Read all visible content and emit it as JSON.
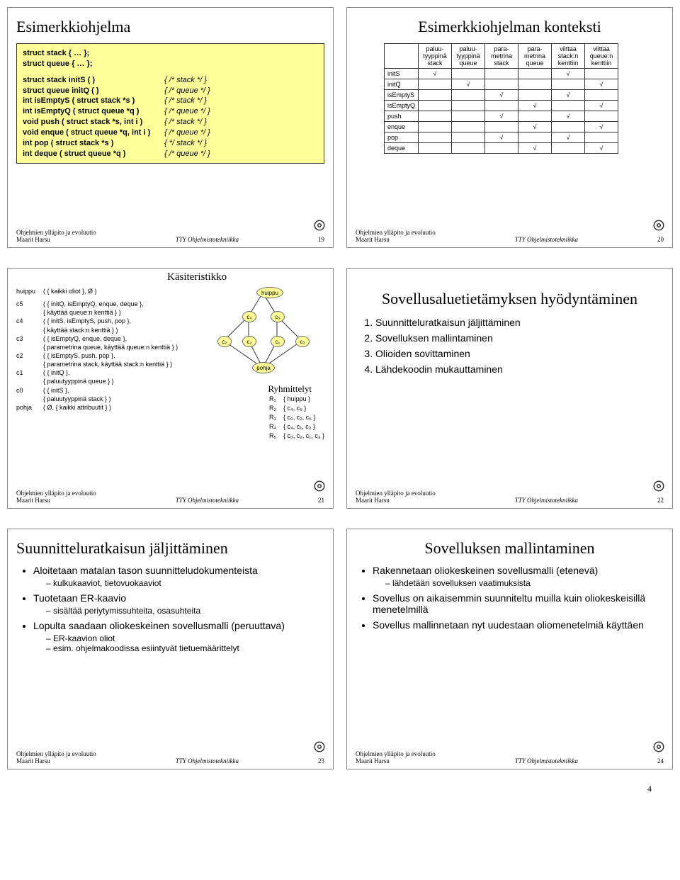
{
  "footer_left_line1": "Ohjelmien ylläpito ja evoluutio",
  "footer_left_line2": "Maarit Harsu",
  "footer_mid": "TTY Ohjelmistotekniikka",
  "page_number": "4",
  "s19": {
    "title": "Esimerkkiohjelma",
    "num": "19",
    "lines": [
      {
        "l": "struct stack { … };",
        "r": "",
        "bold": true
      },
      {
        "l": "struct queue { … };",
        "r": "",
        "bold": true,
        "gap": true
      },
      {
        "l": "struct stack initS ( )",
        "r": "{ /* stack */ }",
        "bold": true
      },
      {
        "l": "struct queue initQ ( )",
        "r": "{ /* queue */ }",
        "bold": true
      },
      {
        "l": "int isEmptyS ( struct stack *s )",
        "r": "{ /* stack */ }",
        "bold": true
      },
      {
        "l": "int isEmptyQ ( struct queue *q )",
        "r": "{ /* queue */ }",
        "bold": true
      },
      {
        "l": "void push ( struct stack *s, int i )",
        "r": "{ /* stack */ }",
        "bold": true
      },
      {
        "l": "void enque ( struct queue *q, int i )",
        "r": "{ /* queue */ }",
        "bold": true
      },
      {
        "l": "int pop ( struct stack *s )",
        "r": "{ */ stack */ }",
        "bold": true
      },
      {
        "l": "int deque ( struct queue *q )",
        "r": "{ /* queue */ }",
        "bold": true
      }
    ]
  },
  "s20": {
    "title": "Esimerkkiohjelman konteksti",
    "num": "20",
    "cols": [
      "paluu-\ntyyppinä\nstack",
      "paluu-\ntyyppinä\nqueue",
      "para-\nmetrina\nstack",
      "para-\nmetrina\nqueue",
      "viittaa\nstack:n\nkenttiin",
      "viittaa\nqueue:n\nkenttiin"
    ],
    "rows": [
      {
        "name": "initS",
        "marks": [
          1,
          0,
          0,
          0,
          1,
          0
        ]
      },
      {
        "name": "initQ",
        "marks": [
          0,
          1,
          0,
          0,
          0,
          1
        ]
      },
      {
        "name": "isEmptyS",
        "marks": [
          0,
          0,
          1,
          0,
          1,
          0
        ]
      },
      {
        "name": "isEmptyQ",
        "marks": [
          0,
          0,
          0,
          1,
          0,
          1
        ]
      },
      {
        "name": "push",
        "marks": [
          0,
          0,
          1,
          0,
          1,
          0
        ]
      },
      {
        "name": "enque",
        "marks": [
          0,
          0,
          0,
          1,
          0,
          1
        ]
      },
      {
        "name": "pop",
        "marks": [
          0,
          0,
          1,
          0,
          1,
          0
        ]
      },
      {
        "name": "deque",
        "marks": [
          0,
          0,
          0,
          1,
          0,
          1
        ]
      }
    ],
    "check": "√"
  },
  "s21": {
    "title": "Käsiteristikko",
    "num": "21",
    "entries": [
      {
        "k": "huippu",
        "v": "( { kaikki oliot }, Ø )",
        "gap": true
      },
      {
        "k": "c5",
        "v": "( { initQ, isEmptyQ, enque, deque },"
      },
      {
        "k": "",
        "v": "  { käyttää queue:n kenttiä } )"
      },
      {
        "k": "c4",
        "v": "( { initS, isEmptyS, push, pop },"
      },
      {
        "k": "",
        "v": "  { käyttää stack:n kenttiä } )"
      },
      {
        "k": "c3",
        "v": "( { isEmptyQ, enque, deque },"
      },
      {
        "k": "",
        "v": "  { parametrina queue, käyttää queue:n kenttiä } )"
      },
      {
        "k": "c2",
        "v": "( { isEmptyS, push, pop },"
      },
      {
        "k": "",
        "v": "  { parametrina stack, käyttää stack:n kenttiä } )"
      },
      {
        "k": "c1",
        "v": "( { initQ },"
      },
      {
        "k": "",
        "v": "  { paluutyyppinä queue } )"
      },
      {
        "k": "c0",
        "v": "( { initS },"
      },
      {
        "k": "",
        "v": "  { paluutyyppinä stack } )"
      },
      {
        "k": "pohja",
        "v": "( Ø, { kaikki attribuutit } )"
      }
    ],
    "lattice_top": "huippu",
    "lattice_bottom": "pohja",
    "nodes": [
      "c₀",
      "c₁",
      "c₂",
      "c₃",
      "c₄",
      "c₅"
    ],
    "ryh_title": "Ryhmittelyt",
    "ryh": [
      {
        "k": "R₁",
        "v": "{ huippu }"
      },
      {
        "k": "R₂",
        "v": "{ c₄, c₅ }"
      },
      {
        "k": "R₃",
        "v": "{ c₀, c₂, c₅ }"
      },
      {
        "k": "R₄",
        "v": "{ c₄, c₁, c₃ }"
      },
      {
        "k": "R₅",
        "v": "{ c₀, c₂, c₁, c₃ }"
      }
    ]
  },
  "s22": {
    "title": "Sovellusaluetietämyksen hyödyntäminen",
    "num": "22",
    "items": [
      "Suunnitteluratkaisun jäljittäminen",
      "Sovelluksen mallintaminen",
      "Olioiden sovittaminen",
      "Lähdekoodin mukauttaminen"
    ]
  },
  "s23": {
    "title": "Suunnitteluratkaisun jäljittäminen",
    "num": "23",
    "bullets": [
      {
        "t": "Aloitetaan matalan tason suunnitteludokumenteista",
        "sub": [
          "kulkukaaviot, tietovuokaaviot"
        ]
      },
      {
        "t": "Tuotetaan ER-kaavio",
        "sub": [
          "sisältää periytymissuhteita, osasuhteita"
        ]
      },
      {
        "t": "Lopulta saadaan oliokeskeinen sovellusmalli (peruuttava)",
        "sub": [
          "ER-kaavion oliot",
          "esim. ohjelmakoodissa esiintyvät tietuemäärittelyt"
        ]
      }
    ]
  },
  "s24": {
    "title": "Sovelluksen mallintaminen",
    "num": "24",
    "bullets": [
      {
        "t": "Rakennetaan oliokeskeinen sovellusmalli (etenevä)",
        "sub": [
          "lähdetään sovelluksen vaatimuksista"
        ]
      },
      {
        "t": "Sovellus on aikaisemmin suunniteltu muilla kuin oliokeskeisillä menetelmillä",
        "sub": []
      },
      {
        "t": "Sovellus mallinnetaan nyt uudestaan oliomenetelmiä käyttäen",
        "sub": []
      }
    ]
  }
}
